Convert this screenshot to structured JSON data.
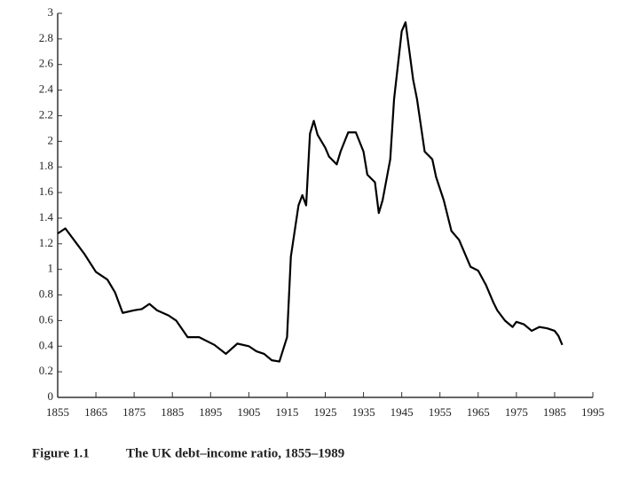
{
  "chart_data": {
    "type": "line",
    "caption_label": "Figure 1.1",
    "caption_text": "The UK debt–income ratio, 1855–1989",
    "xlim": [
      1855,
      1995
    ],
    "xticks": [
      1855,
      1865,
      1875,
      1885,
      1895,
      1905,
      1915,
      1925,
      1935,
      1945,
      1955,
      1965,
      1975,
      1985,
      1995
    ],
    "ylim": [
      0,
      3
    ],
    "yticks": [
      0,
      0.2,
      0.4,
      0.6,
      0.8,
      1,
      1.2,
      1.4,
      1.6,
      1.8,
      2,
      2.2,
      2.4,
      2.6,
      2.8,
      3
    ],
    "color": "#000000",
    "series": [
      {
        "x": [
          1855,
          1857,
          1860,
          1862,
          1865,
          1868,
          1870,
          1872,
          1875,
          1877,
          1879,
          1881,
          1884,
          1886,
          1889,
          1892,
          1896,
          1899,
          1902,
          1905,
          1907,
          1909,
          1911,
          1913,
          1915,
          1916,
          1918,
          1919,
          1920,
          1921,
          1922,
          1923,
          1925,
          1926,
          1928,
          1929,
          1931,
          1933,
          1935,
          1936,
          1938,
          1939,
          1940,
          1942,
          1943,
          1945,
          1946,
          1948,
          1949,
          1951,
          1953,
          1954,
          1956,
          1958,
          1960,
          1961,
          1963,
          1965,
          1967,
          1969,
          1970,
          1972,
          1974,
          1975,
          1977,
          1979,
          1981,
          1983,
          1985,
          1986,
          1987
        ],
        "values": [
          1.28,
          1.32,
          1.2,
          1.12,
          0.98,
          0.92,
          0.82,
          0.66,
          0.68,
          0.69,
          0.73,
          0.68,
          0.64,
          0.6,
          0.47,
          0.47,
          0.41,
          0.34,
          0.42,
          0.4,
          0.36,
          0.34,
          0.29,
          0.28,
          0.47,
          1.1,
          1.5,
          1.58,
          1.5,
          2.06,
          2.16,
          2.05,
          1.95,
          1.88,
          1.82,
          1.92,
          2.07,
          2.07,
          1.92,
          1.74,
          1.68,
          1.44,
          1.54,
          1.86,
          2.33,
          2.86,
          2.93,
          2.48,
          2.33,
          1.92,
          1.86,
          1.72,
          1.54,
          1.3,
          1.23,
          1.16,
          1.02,
          0.99,
          0.88,
          0.74,
          0.68,
          0.6,
          0.55,
          0.59,
          0.57,
          0.52,
          0.55,
          0.54,
          0.52,
          0.48,
          0.41
        ]
      }
    ]
  }
}
